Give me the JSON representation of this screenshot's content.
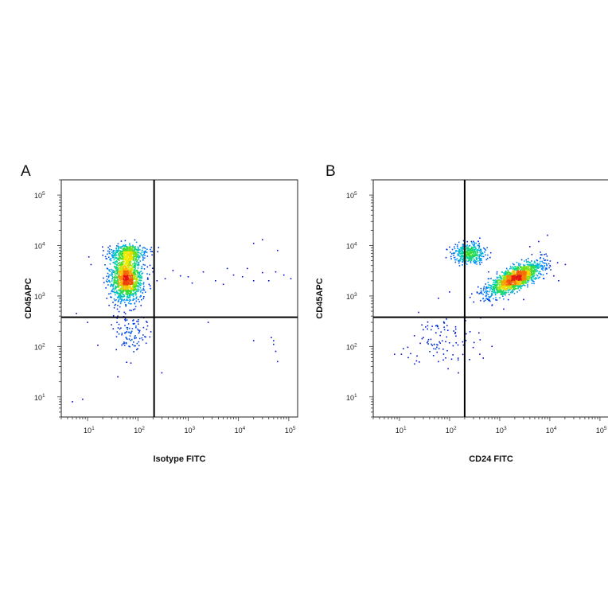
{
  "chart_data": [
    {
      "type": "scatter",
      "panel_label": "A",
      "xlabel": "Isotype FITC",
      "ylabel": "CD45APC",
      "xscale": "log",
      "yscale": "log",
      "xlim": [
        3,
        150000
      ],
      "ylim": [
        4,
        200000
      ],
      "x_ticks": [
        {
          "value": 10,
          "label": "10",
          "exp": "1"
        },
        {
          "value": 100,
          "label": "10",
          "exp": "2"
        },
        {
          "value": 1000,
          "label": "10",
          "exp": "3"
        },
        {
          "value": 10000,
          "label": "10",
          "exp": "4"
        },
        {
          "value": 100000,
          "label": "10",
          "exp": "5"
        }
      ],
      "y_ticks": [
        {
          "value": 10,
          "label": "10",
          "exp": "1"
        },
        {
          "value": 100,
          "label": "10",
          "exp": "2"
        },
        {
          "value": 1000,
          "label": "10",
          "exp": "3"
        },
        {
          "value": 10000,
          "label": "10",
          "exp": "4"
        },
        {
          "value": 100000,
          "label": "10",
          "exp": "5"
        }
      ],
      "quadrant_gate": {
        "x": 210,
        "y": 380
      },
      "grid": false,
      "populations": [
        {
          "name_hint": "main",
          "center": [
            60,
            2300
          ],
          "spread_decades": [
            0.16,
            0.24
          ],
          "count": 1300,
          "colormap": "density"
        },
        {
          "name_hint": "upper",
          "center": [
            65,
            7000
          ],
          "spread_decades": [
            0.19,
            0.08
          ],
          "count": 380,
          "colormap": "density"
        },
        {
          "name_hint": "low-tail",
          "center": [
            70,
            200
          ],
          "spread_decades": [
            0.2,
            0.28
          ],
          "count": 110,
          "colormap": "density"
        }
      ],
      "sparse_points": [
        [
          200,
          3000
        ],
        [
          240,
          2000
        ],
        [
          350,
          2200
        ],
        [
          500,
          3200
        ],
        [
          700,
          2500
        ],
        [
          1200,
          1800
        ],
        [
          2000,
          3000
        ],
        [
          3500,
          2000
        ],
        [
          5000,
          1700
        ],
        [
          8000,
          2600
        ],
        [
          12000,
          2400
        ],
        [
          15000,
          3500
        ],
        [
          20000,
          2000
        ],
        [
          30000,
          2900
        ],
        [
          40000,
          2000
        ],
        [
          55000,
          3000
        ],
        [
          80000,
          2600
        ],
        [
          110000,
          2200
        ],
        [
          20000,
          11000
        ],
        [
          30000,
          13000
        ],
        [
          60000,
          8000
        ],
        [
          45000,
          150
        ],
        [
          50000,
          110
        ],
        [
          55000,
          80
        ],
        [
          60000,
          50
        ],
        [
          50000,
          130
        ],
        [
          10,
          300
        ],
        [
          6,
          450
        ],
        [
          8,
          9
        ],
        [
          5,
          8
        ],
        [
          40,
          25
        ],
        [
          20000,
          130
        ],
        [
          300,
          30
        ],
        [
          2500,
          300
        ],
        [
          1000,
          2400
        ],
        [
          6000,
          3500
        ]
      ]
    },
    {
      "type": "scatter",
      "panel_label": "B",
      "xlabel": "CD24 FITC",
      "ylabel": "CD45APC",
      "xscale": "log",
      "yscale": "log",
      "xlim": [
        3,
        150000
      ],
      "ylim": [
        4,
        200000
      ],
      "x_ticks": [
        {
          "value": 10,
          "label": "10",
          "exp": "1"
        },
        {
          "value": 100,
          "label": "10",
          "exp": "2"
        },
        {
          "value": 1000,
          "label": "10",
          "exp": "3"
        },
        {
          "value": 10000,
          "label": "10",
          "exp": "4"
        },
        {
          "value": 100000,
          "label": "10",
          "exp": "5"
        }
      ],
      "y_ticks": [
        {
          "value": 10,
          "label": "10",
          "exp": "1"
        },
        {
          "value": 100,
          "label": "10",
          "exp": "2"
        },
        {
          "value": 1000,
          "label": "10",
          "exp": "3"
        },
        {
          "value": 10000,
          "label": "10",
          "exp": "4"
        },
        {
          "value": 100000,
          "label": "10",
          "exp": "5"
        }
      ],
      "quadrant_gate": {
        "x": 200,
        "y": 380
      },
      "grid": false,
      "populations": [
        {
          "name_hint": "CD24-high",
          "center": [
            2000,
            2200
          ],
          "spread_decades": [
            0.27,
            0.16
          ],
          "count": 1500,
          "colormap": "density",
          "correlation": 0.72
        },
        {
          "name_hint": "CD24-low",
          "center": [
            250,
            7000
          ],
          "spread_decades": [
            0.16,
            0.09
          ],
          "count": 420,
          "colormap": "density"
        },
        {
          "name_hint": "low-tail",
          "center": [
            80,
            140
          ],
          "spread_decades": [
            0.32,
            0.25
          ],
          "count": 90,
          "colormap": "density"
        }
      ],
      "sparse_points": [
        [
          15,
          60
        ],
        [
          20,
          45
        ],
        [
          8,
          70
        ],
        [
          12,
          90
        ],
        [
          30,
          150
        ],
        [
          45,
          250
        ],
        [
          60,
          50
        ],
        [
          150,
          30
        ],
        [
          250,
          55
        ],
        [
          400,
          70
        ],
        [
          700,
          100
        ],
        [
          4000,
          9500
        ],
        [
          6000,
          12000
        ],
        [
          9000,
          16000
        ],
        [
          12000,
          2500
        ],
        [
          15000,
          2000
        ],
        [
          300,
          12000
        ],
        [
          400,
          14000
        ],
        [
          600,
          3000
        ],
        [
          100,
          1200
        ],
        [
          60,
          900
        ],
        [
          700,
          650
        ],
        [
          1200,
          550
        ],
        [
          3000,
          850
        ]
      ]
    }
  ]
}
